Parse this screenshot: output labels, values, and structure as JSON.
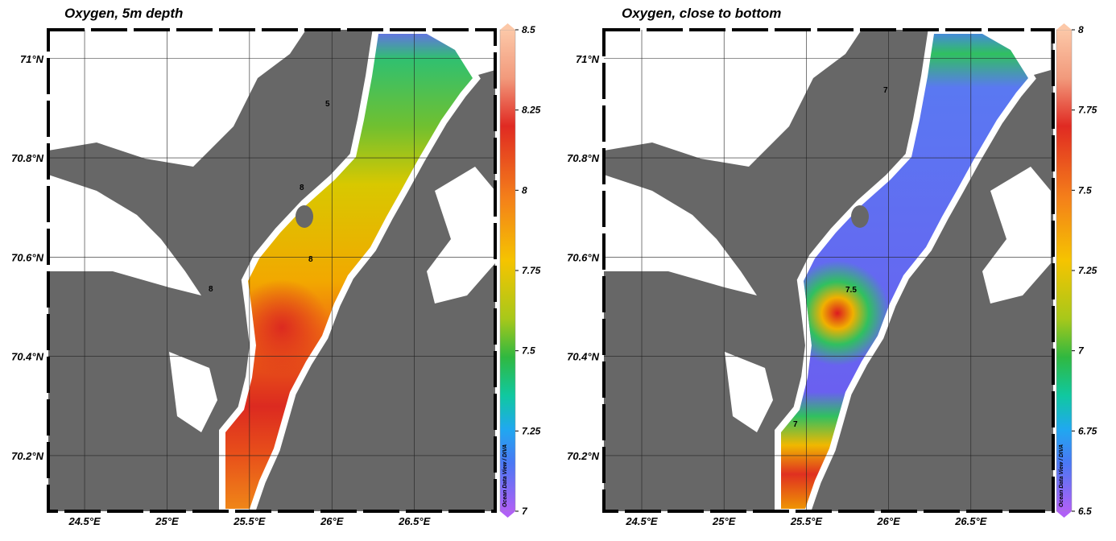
{
  "maps": [
    {
      "title": "Oxygen, 5m depth",
      "xlim": [
        24.28,
        26.99
      ],
      "ylim": [
        70.088,
        71.058
      ],
      "xticks": [
        {
          "value": 24.5,
          "label": "24.5°E"
        },
        {
          "value": 25,
          "label": "25°E"
        },
        {
          "value": 25.5,
          "label": "25.5°E"
        },
        {
          "value": 26,
          "label": "26°E"
        },
        {
          "value": 26.5,
          "label": "26.5°E"
        }
      ],
      "yticks": [
        {
          "value": 70.2,
          "label": "70.2°N"
        },
        {
          "value": 70.4,
          "label": "70.4°N"
        },
        {
          "value": 70.6,
          "label": "70.6°N"
        },
        {
          "value": 70.8,
          "label": "70.8°N"
        },
        {
          "value": 71,
          "label": "71°N"
        }
      ],
      "colorbar": {
        "range": [
          7,
          8.5
        ],
        "ticks": [
          7,
          7.25,
          7.5,
          7.75,
          8,
          8.25,
          8.5
        ],
        "credit": "Ocean Data View / DIVA"
      },
      "contour_labels": [
        "5",
        "8",
        "8",
        "8"
      ]
    },
    {
      "title": "Oxygen, close to bottom",
      "xlim": [
        24.27,
        27.0
      ],
      "ylim": [
        70.088,
        71.058
      ],
      "xticks": [
        {
          "value": 24.5,
          "label": "24.5°E"
        },
        {
          "value": 25,
          "label": "25°E"
        },
        {
          "value": 25.5,
          "label": "25.5°E"
        },
        {
          "value": 26,
          "label": "26°E"
        },
        {
          "value": 26.5,
          "label": "26.5°E"
        }
      ],
      "yticks": [
        {
          "value": 70.2,
          "label": "70.2°N"
        },
        {
          "value": 70.4,
          "label": "70.4°N"
        },
        {
          "value": 70.6,
          "label": "70.6°N"
        },
        {
          "value": 70.8,
          "label": "70.8°N"
        },
        {
          "value": 71,
          "label": "71°N"
        }
      ],
      "colorbar": {
        "range": [
          6.5,
          8
        ],
        "ticks": [
          6.5,
          6.75,
          7,
          7.25,
          7.5,
          7.75,
          8
        ],
        "credit": "Ocean Data View / DIVA"
      },
      "contour_labels": [
        "7",
        "7.5",
        "7"
      ]
    }
  ]
}
